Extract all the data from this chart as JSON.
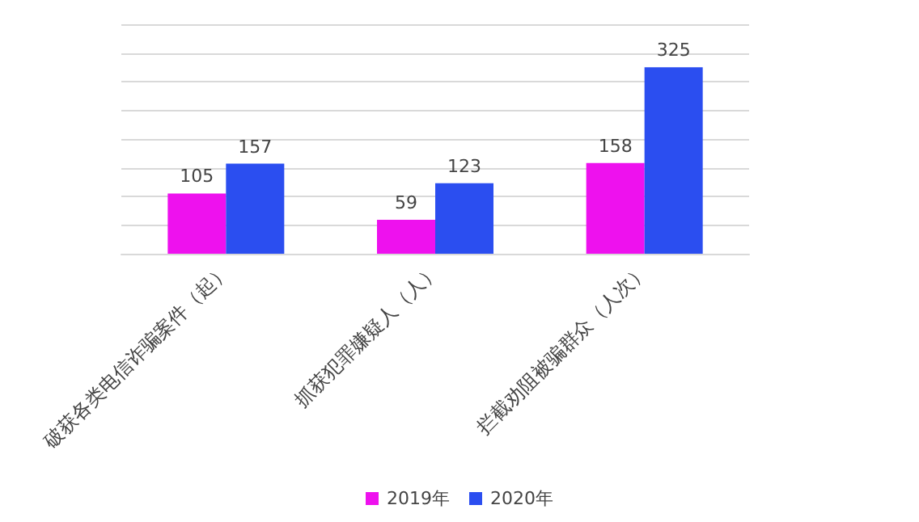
{
  "chart_data": {
    "type": "bar",
    "categories": [
      "破获各类电信诈骗案件（起）",
      "抓获犯罪嫌疑人（人）",
      "拦截劝阻被骗群众（人次）"
    ],
    "series": [
      {
        "name": "2019年",
        "color": "#ee11ee",
        "values": [
          105,
          59,
          158
        ]
      },
      {
        "name": "2020年",
        "color": "#2b4ef0",
        "values": [
          157,
          123,
          325
        ]
      }
    ],
    "ylim": [
      0,
      400
    ],
    "yticks": [
      {
        "value": 0,
        "label": null
      },
      {
        "value": 50,
        "label": null
      },
      {
        "value": 100,
        "label": null
      },
      {
        "value": 150,
        "label": null
      },
      {
        "value": 200,
        "label": null
      },
      {
        "value": 250,
        "label": null
      },
      {
        "value": 300,
        "label": null
      },
      {
        "value": 350,
        "label": null
      },
      {
        "value": 400,
        "label": null
      }
    ],
    "tick_labels": "x",
    "grid": true,
    "legend": "bottom",
    "data_labels": true
  }
}
